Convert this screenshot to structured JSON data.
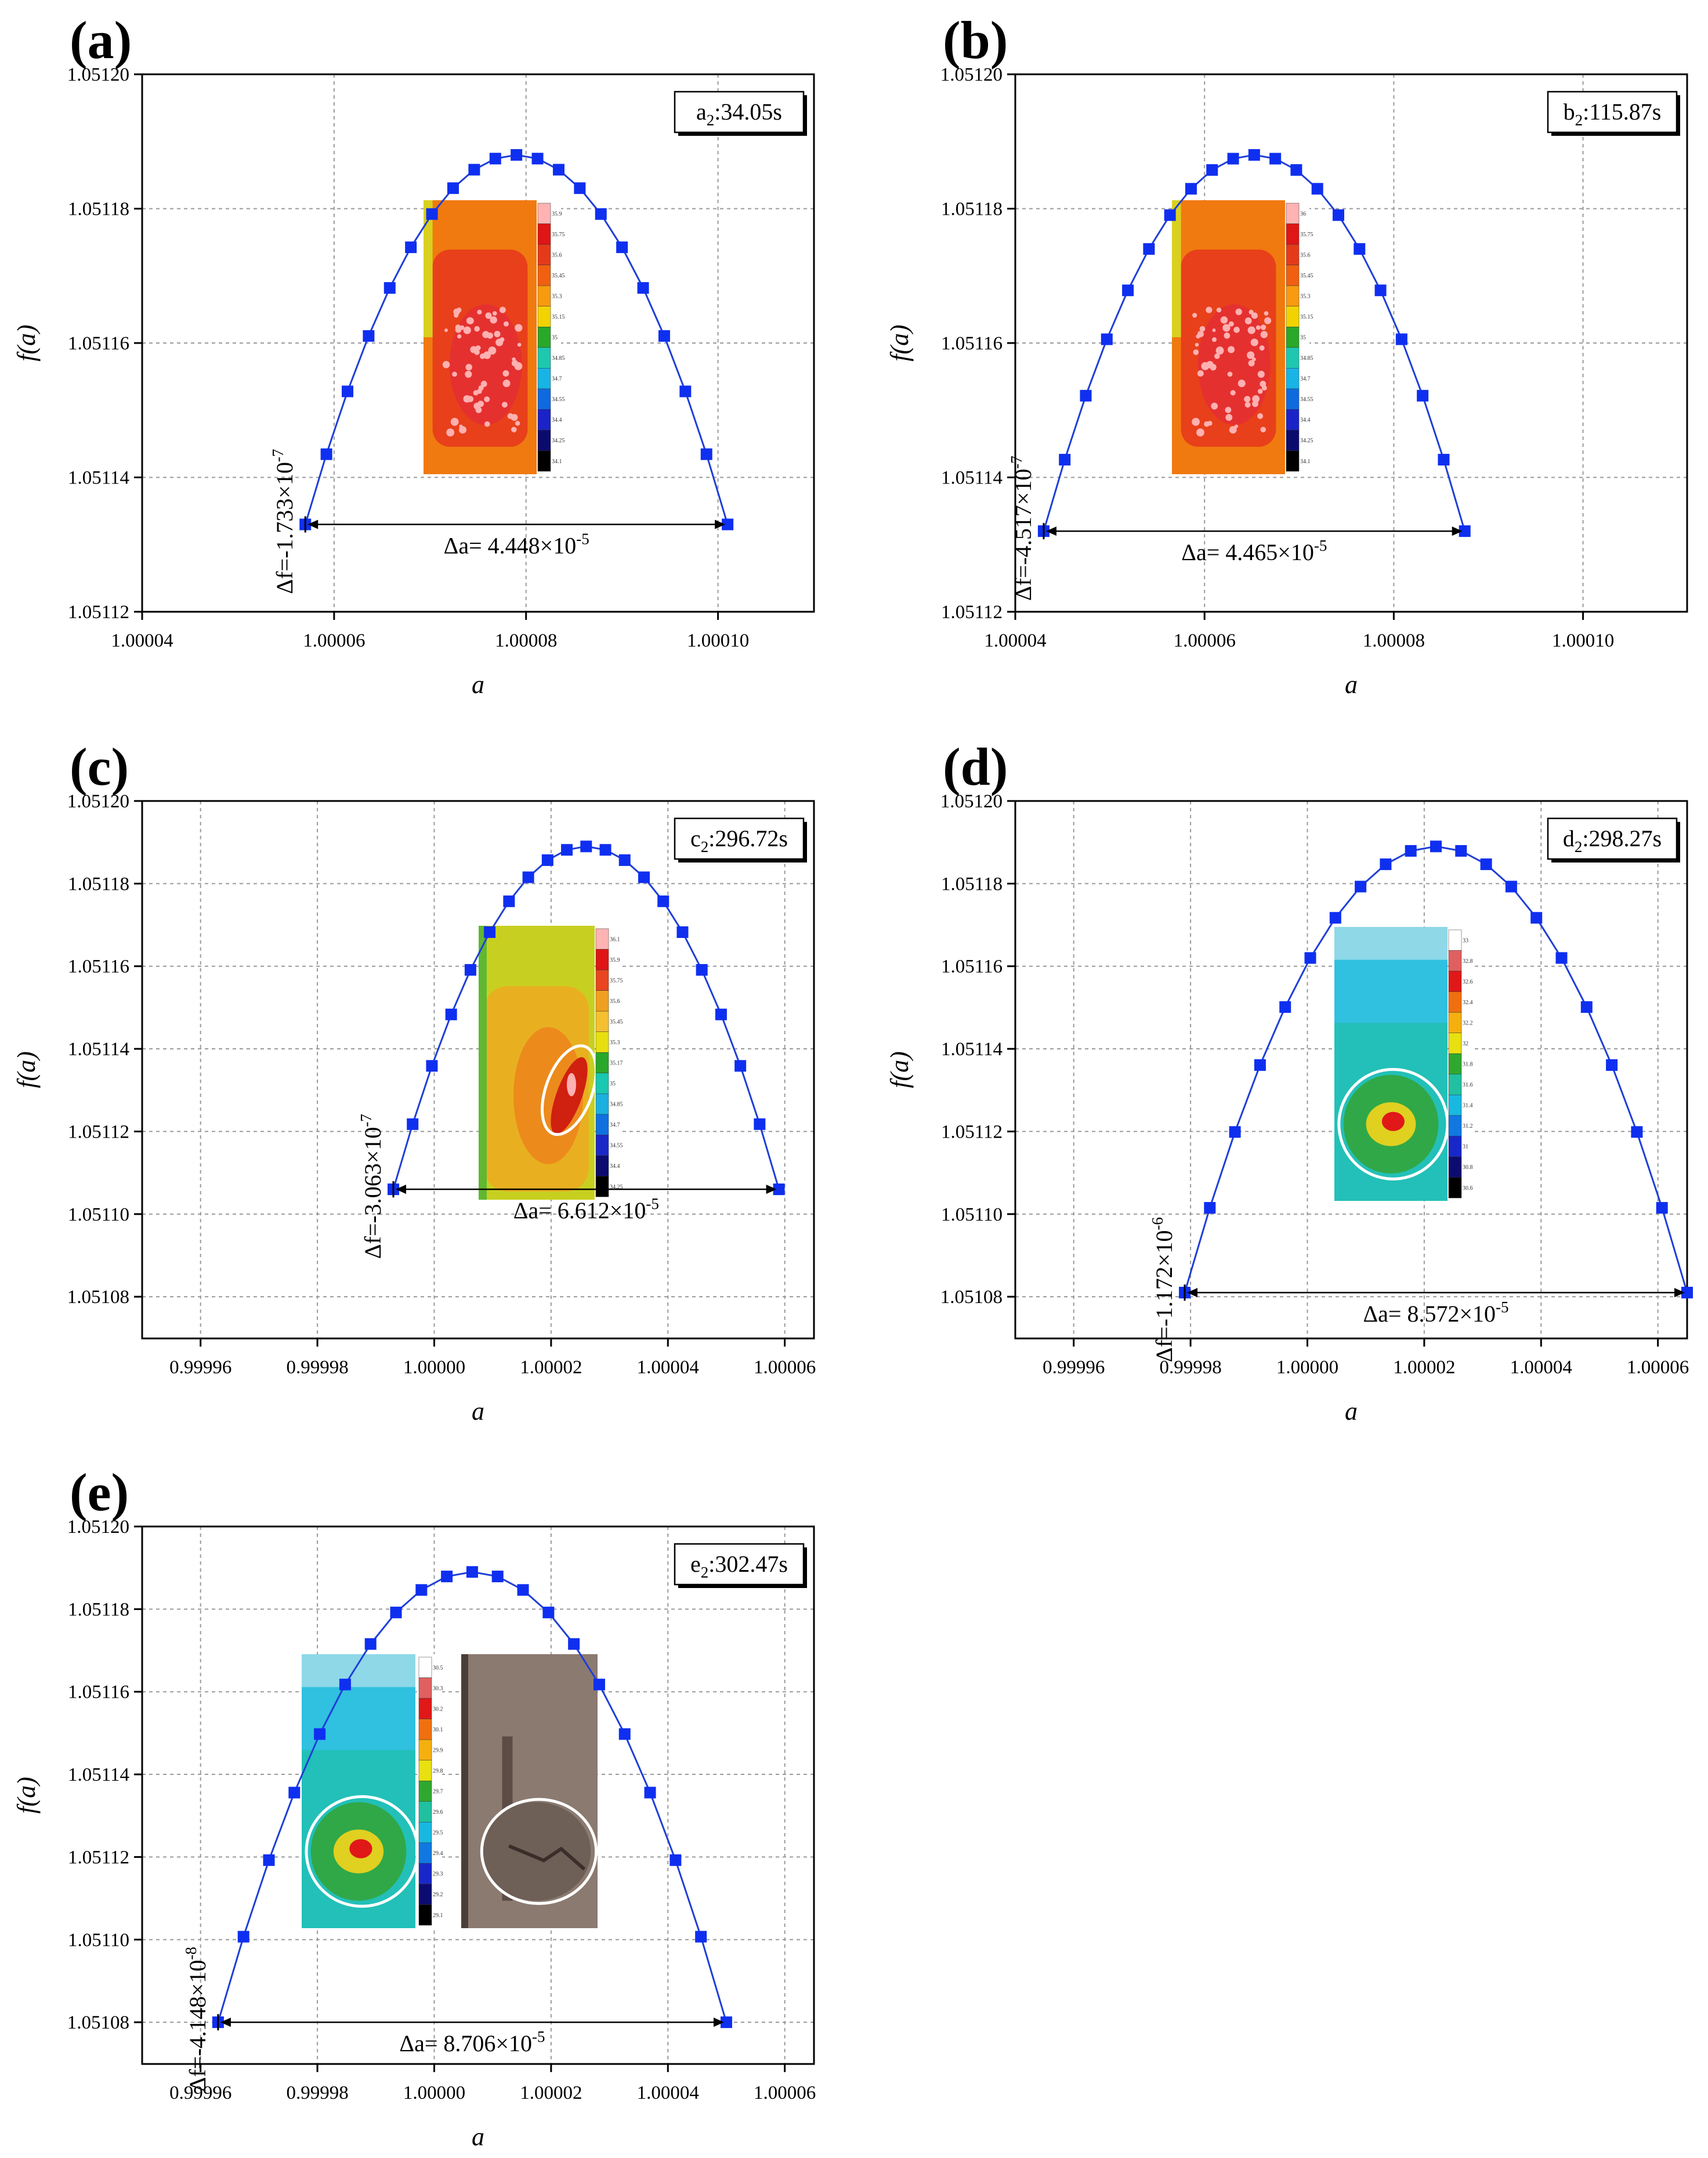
{
  "colors": {
    "curve": "#1f3fd6",
    "marker": "#0f2ff0",
    "grid": "#9a9a9a",
    "axis": "#000000",
    "text": "#000000",
    "ellipse": "#ffffff"
  },
  "chart_data": [
    {
      "type": "line",
      "panel_label": "(a)",
      "time_label": "a",
      "time_sub": "2",
      "time_value": ":34.05s",
      "xlabel": "a",
      "ylabel": "f(a)",
      "xlim": [
        1.00004,
        1.00011
      ],
      "ylim": [
        1.05112,
        1.0512
      ],
      "xticks": [
        1.00004,
        1.00006,
        1.00008,
        1.0001
      ],
      "xtick_labels": [
        "1.00004",
        "1.00006",
        "1.00008",
        "1.00010"
      ],
      "yticks": [
        1.05112,
        1.05114,
        1.05116,
        1.05118,
        1.0512
      ],
      "ytick_labels": [
        "1.05112",
        "1.05114",
        "1.05116",
        "1.05118",
        "1.05120"
      ],
      "grid": true,
      "curve": {
        "left": 1.000057,
        "right": 1.000101,
        "yend": 1.051133,
        "ypeak": 1.051188,
        "n": 21
      },
      "delta_a_text": "Δa= 4.448×10",
      "delta_a_exp": "-5",
      "delta_f_text": "Δf=-1.733×10",
      "delta_f_exp": "-7",
      "inset": {
        "kind": "contour",
        "palette": "hot",
        "legend_values": [
          "35.9",
          "35.75",
          "35.6",
          "35.45",
          "35.3",
          "35.15",
          "35",
          "34.85",
          "34.7",
          "34.55",
          "34.4",
          "34.25",
          "34.1"
        ],
        "ellipse": false
      }
    },
    {
      "type": "line",
      "panel_label": "(b)",
      "time_label": "b",
      "time_sub": "2",
      "time_value": ":115.87s",
      "xlabel": "a",
      "ylabel": "f(a)",
      "xlim": [
        1.00004,
        1.000111
      ],
      "ylim": [
        1.05112,
        1.0512
      ],
      "xticks": [
        1.00004,
        1.00006,
        1.00008,
        1.0001
      ],
      "xtick_labels": [
        "1.00004",
        "1.00006",
        "1.00008",
        "1.00010"
      ],
      "yticks": [
        1.05112,
        1.05114,
        1.05116,
        1.05118,
        1.0512
      ],
      "ytick_labels": [
        "1.05112",
        "1.05114",
        "1.05116",
        "1.05118",
        "1.05120"
      ],
      "grid": true,
      "curve": {
        "left": 1.000043,
        "right": 1.0000875,
        "yend": 1.051132,
        "ypeak": 1.051188,
        "n": 21
      },
      "delta_a_text": "Δa= 4.465×10",
      "delta_a_exp": "-5",
      "delta_f_text": "Δf=-4.517×10",
      "delta_f_exp": "-7",
      "inset": {
        "kind": "contour",
        "palette": "hot",
        "legend_values": [
          "36",
          "35.75",
          "35.6",
          "35.45",
          "35.3",
          "35.15",
          "35",
          "34.85",
          "34.7",
          "34.55",
          "34.4",
          "34.25",
          "34.1"
        ],
        "ellipse": false
      }
    },
    {
      "type": "line",
      "panel_label": "(c)",
      "time_label": "c",
      "time_sub": "2",
      "time_value": ":296.72s",
      "xlabel": "a",
      "ylabel": "f(a)",
      "xlim": [
        0.99995,
        1.000065
      ],
      "ylim": [
        1.0510699,
        1.0512
      ],
      "xticks": [
        0.99996,
        0.99998,
        1.0,
        1.00002,
        1.00004,
        1.00006
      ],
      "xtick_labels": [
        "0.99996",
        "0.99998",
        "1.00000",
        "1.00002",
        "1.00004",
        "1.00006"
      ],
      "yticks": [
        1.05108,
        1.0511,
        1.05112,
        1.05114,
        1.05116,
        1.05118,
        1.0512
      ],
      "ytick_labels": [
        "1.05108",
        "1.05110",
        "1.05112",
        "1.05114",
        "1.05116",
        "1.05118",
        "1.05120"
      ],
      "grid": true,
      "curve": {
        "left": 0.999993,
        "right": 1.000059,
        "yend": 1.051106,
        "ypeak": 1.051189,
        "n": 21
      },
      "delta_a_text": "Δa= 6.612×10",
      "delta_a_exp": "-5",
      "delta_f_text": "Δf=-3.063×10",
      "delta_f_exp": "-7",
      "inset": {
        "kind": "contour",
        "palette": "yellow",
        "legend_values": [
          "36.1",
          "35.9",
          "35.75",
          "35.6",
          "35.45",
          "35.3",
          "35.17",
          "35",
          "34.85",
          "34.7",
          "34.55",
          "34.4",
          "34.25"
        ],
        "ellipse": true
      }
    },
    {
      "type": "line",
      "panel_label": "(d)",
      "time_label": "d",
      "time_sub": "2",
      "time_value": ":298.27s",
      "xlabel": "a",
      "ylabel": "f(a)",
      "xlim": [
        0.99995,
        1.000065
      ],
      "ylim": [
        1.0510699,
        1.0512
      ],
      "xticks": [
        0.99996,
        0.99998,
        1.0,
        1.00002,
        1.00004,
        1.00006
      ],
      "xtick_labels": [
        "0.99996",
        "0.99998",
        "1.00000",
        "1.00002",
        "1.00004",
        "1.00006"
      ],
      "yticks": [
        1.05108,
        1.0511,
        1.05112,
        1.05114,
        1.05116,
        1.05118,
        1.0512
      ],
      "ytick_labels": [
        "1.05108",
        "1.05110",
        "1.05112",
        "1.05114",
        "1.05116",
        "1.05118",
        "1.05120"
      ],
      "grid": true,
      "curve": {
        "left": 0.999979,
        "right": 1.000065,
        "yend": 1.051081,
        "ypeak": 1.051189,
        "n": 21
      },
      "delta_a_text": "Δa= 8.572×10",
      "delta_a_exp": "-5",
      "delta_f_text": "Δf=-1.172×10",
      "delta_f_exp": "-6",
      "inset": {
        "kind": "contour",
        "palette": "cool",
        "legend_values": [
          "33",
          "32.8",
          "32.6",
          "32.4",
          "32.2",
          "32",
          "31.8",
          "31.6",
          "31.4",
          "31.2",
          "31",
          "30.8",
          "30.6"
        ],
        "ellipse": true
      }
    },
    {
      "type": "line",
      "panel_label": "(e)",
      "time_label": "e",
      "time_sub": "2",
      "time_value": ":302.47s",
      "xlabel": "a",
      "ylabel": "f(a)",
      "xlim": [
        0.99995,
        1.000065
      ],
      "ylim": [
        1.0510699,
        1.0512
      ],
      "xticks": [
        0.99996,
        0.99998,
        1.0,
        1.00002,
        1.00004,
        1.00006
      ],
      "xtick_labels": [
        "0.99996",
        "0.99998",
        "1.00000",
        "1.00002",
        "1.00004",
        "1.00006"
      ],
      "yticks": [
        1.05108,
        1.0511,
        1.05112,
        1.05114,
        1.05116,
        1.05118,
        1.0512
      ],
      "ytick_labels": [
        "1.05108",
        "1.05110",
        "1.05112",
        "1.05114",
        "1.05116",
        "1.05118",
        "1.05120"
      ],
      "grid": true,
      "curve": {
        "left": 0.999963,
        "right": 1.00005,
        "yend": 1.05108,
        "ypeak": 1.051189,
        "n": 21
      },
      "delta_a_text": "Δa= 8.706×10",
      "delta_a_exp": "-5",
      "delta_f_text": "Δf=-4.148×10",
      "delta_f_exp": "-8",
      "inset": {
        "kind": "contour",
        "palette": "cool",
        "legend_values": [
          "30.5",
          "30.3",
          "30.2",
          "30.1",
          "29.9",
          "29.8",
          "29.7",
          "29.6",
          "29.5",
          "29.4",
          "29.3",
          "29.2",
          "29.1"
        ],
        "ellipse": true,
        "photo": true
      }
    }
  ]
}
